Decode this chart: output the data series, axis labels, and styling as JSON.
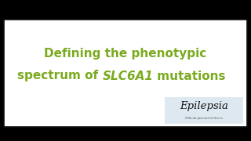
{
  "background_color": "#000000",
  "outer_bg": "#ffffff",
  "card_border_color": "#111111",
  "line1": "Defining the phenotypic",
  "line2_normal1": "spectrum of ",
  "line2_italic": "SLC6A1",
  "line2_normal2": " mutations",
  "text_color": "#7aaa1e",
  "title_fontsize": 11.0,
  "epilepsia_text": "Epilepsia",
  "epilepsia_sub": "Official Journal of the In",
  "epilepsia_color": "#111111",
  "epilepsia_bg": "#dde8f0",
  "epilepsia_fontsize": 9.5,
  "epilepsia_sub_fontsize": 3.0
}
